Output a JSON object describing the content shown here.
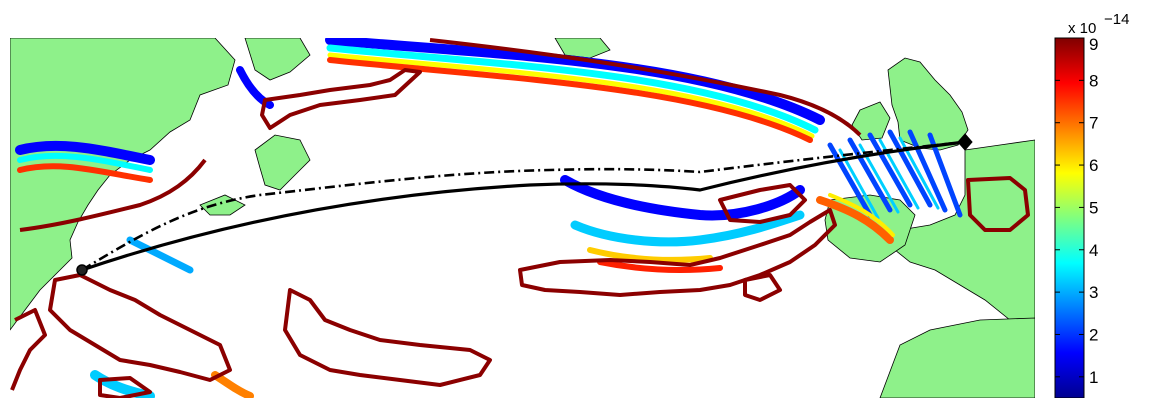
{
  "chart_data": {
    "type": "heatmap",
    "title": "",
    "colorbar": {
      "min": 0.5,
      "max": 9,
      "ticks": [
        1,
        2,
        3,
        4,
        5,
        6,
        7,
        8,
        9
      ],
      "tick_labels": [
        "1",
        "2",
        "3",
        "4",
        "5",
        "6",
        "7",
        "8",
        "9"
      ],
      "exponent_base": "x 10",
      "exponent_power": "−14",
      "colormap": "jet"
    },
    "colors": {
      "land": "#8ef18a",
      "ocean": "#ffffff",
      "contour_high": "#8b0000",
      "route_line": "#000000"
    },
    "routes": [
      {
        "style": "solid"
      },
      {
        "style": "dash-dot"
      }
    ],
    "route_endpoints": {
      "start_marker": "circle",
      "end_marker": "diamond"
    }
  }
}
